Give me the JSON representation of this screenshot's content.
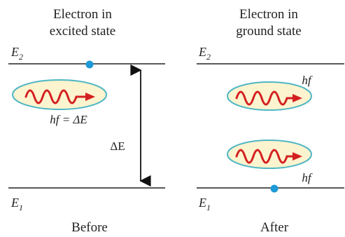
{
  "left_panel": {
    "heading_line1": "Electron in",
    "heading_line2": "excited state",
    "upper_level_label": "E",
    "upper_level_sub": "2",
    "lower_level_label": "E",
    "lower_level_sub": "1",
    "photon_equation": "hf = ΔE",
    "caption": "Before"
  },
  "energy_gap_label": "ΔE",
  "right_panel": {
    "heading_line1": "Electron in",
    "heading_line2": "ground state",
    "upper_level_label": "E",
    "upper_level_sub": "2",
    "lower_level_label": "E",
    "lower_level_sub": "1",
    "photon_top_label": "hf",
    "photon_bottom_label": "hf",
    "caption": "After"
  },
  "colors": {
    "level_line": "#222222",
    "electron": "#1e9ad6",
    "photon_fill": "#fbf4cf",
    "photon_outline": "#4fb6c4",
    "wave": "#d42020"
  }
}
